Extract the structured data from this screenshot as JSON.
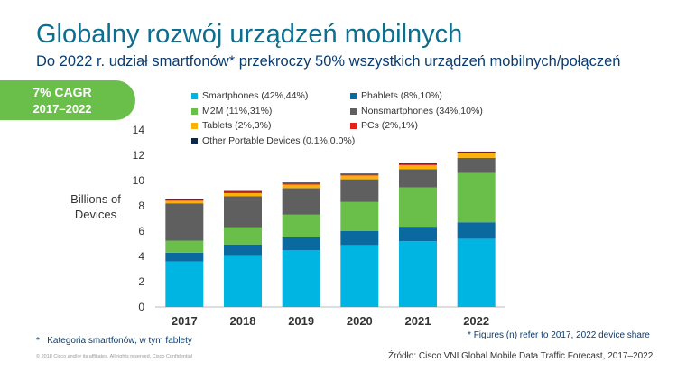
{
  "title": "Globalny rozwój urządzeń mobilnych",
  "subtitle": "Do 2022 r. udział smartfonów* przekroczy 50% wszystkich urządzeń mobilnych/połączeń",
  "cagr": {
    "line1": "7% CAGR",
    "line2": "2017–2022",
    "color": "#6abf4b"
  },
  "notes": {
    "left_star": "*",
    "left": "Kategoria smartfonów, w tym fablety",
    "right_star": "*",
    "right": "Figures (n) refer to 2017, 2022 device share",
    "source": "Źródło: Cisco VNI Global Mobile Data Traffic Forecast, 2017–2022",
    "copyright": "© 2018  Cisco and/or its affiliates. All rights reserved.   Cisco Confidential"
  },
  "chart_data": {
    "type": "bar",
    "stacked": true,
    "ylabel": "Billions of Devices",
    "ylim": [
      0,
      14
    ],
    "yticks": [
      0,
      2,
      4,
      6,
      8,
      10,
      12,
      14
    ],
    "categories": [
      "2017",
      "2018",
      "2019",
      "2020",
      "2021",
      "2022"
    ],
    "legend_order": [
      "Smartphones",
      "Phablets",
      "M2M",
      "Nonsmartphones",
      "Tablets",
      "PCs",
      "Other Portable Devices"
    ],
    "series": [
      {
        "name": "Smartphones",
        "legend": "Smartphones (42%,44%)",
        "color": "#00b5e2",
        "values": [
          3.6,
          4.1,
          4.5,
          4.9,
          5.2,
          5.4
        ]
      },
      {
        "name": "Phablets",
        "legend": "Phablets (8%,10%)",
        "color": "#0a6aa0",
        "values": [
          0.7,
          0.85,
          1.0,
          1.1,
          1.15,
          1.3
        ]
      },
      {
        "name": "M2M",
        "legend": "M2M (11%,31%)",
        "color": "#6abf4b",
        "values": [
          0.95,
          1.35,
          1.8,
          2.3,
          3.1,
          3.9
        ]
      },
      {
        "name": "Nonsmartphones",
        "legend": "Nonsmartphones (34%,10%)",
        "color": "#5f5f5f",
        "values": [
          2.95,
          2.45,
          2.1,
          1.8,
          1.45,
          1.2
        ]
      },
      {
        "name": "Tablets",
        "legend": "Tablets (2%,3%)",
        "color": "#fbb30a",
        "values": [
          0.2,
          0.25,
          0.28,
          0.3,
          0.32,
          0.35
        ]
      },
      {
        "name": "PCs",
        "legend": "PCs (2%,1%)",
        "color": "#e2231a",
        "values": [
          0.15,
          0.15,
          0.14,
          0.13,
          0.12,
          0.12
        ]
      },
      {
        "name": "Other Portable Devices",
        "legend": "Other Portable Devices (0.1%,0.0%)",
        "color": "#0b2a4a",
        "values": [
          0.02,
          0.02,
          0.02,
          0.02,
          0.02,
          0.02
        ]
      }
    ]
  }
}
